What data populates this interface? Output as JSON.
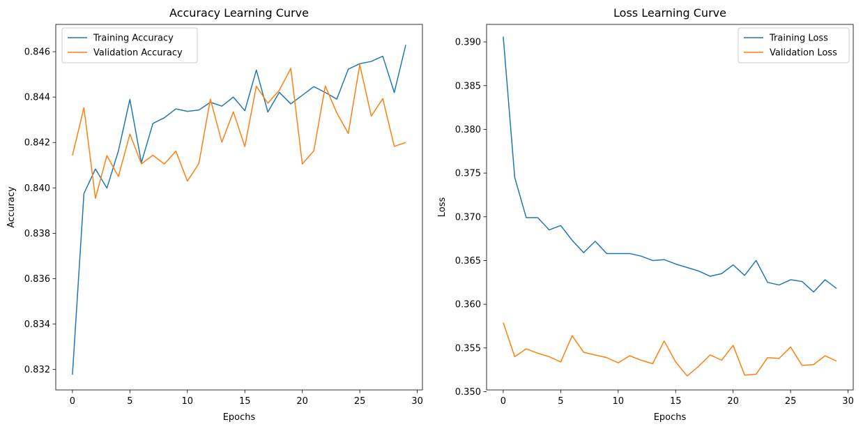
{
  "chart_data": [
    {
      "type": "line",
      "title": "Accuracy Learning Curve",
      "xlabel": "Epochs",
      "ylabel": "Accuracy",
      "xlim": [
        -1.45,
        30.45
      ],
      "ylim": [
        0.8311,
        0.8472
      ],
      "xticks": [
        0,
        5,
        10,
        15,
        20,
        25,
        30
      ],
      "yticks": [
        0.832,
        0.834,
        0.836,
        0.838,
        0.84,
        0.842,
        0.844,
        0.846
      ],
      "ytick_labels": [
        "0.832",
        "0.834",
        "0.836",
        "0.838",
        "0.840",
        "0.842",
        "0.844",
        "0.846"
      ],
      "x": [
        0,
        1,
        2,
        3,
        4,
        5,
        6,
        7,
        8,
        9,
        10,
        11,
        12,
        13,
        14,
        15,
        16,
        17,
        18,
        19,
        20,
        21,
        22,
        23,
        24,
        25,
        26,
        27,
        28,
        29
      ],
      "legend_position": "upper left",
      "grid": false,
      "series": [
        {
          "name": "Training Accuracy",
          "color": "#1f77b4",
          "values": [
            0.83177,
            0.83975,
            0.84083,
            0.83999,
            0.84163,
            0.8439,
            0.84111,
            0.84284,
            0.84309,
            0.84348,
            0.84337,
            0.84343,
            0.84377,
            0.8436,
            0.844,
            0.8434,
            0.84519,
            0.84334,
            0.84421,
            0.8437,
            0.84408,
            0.84446,
            0.8442,
            0.84391,
            0.84523,
            0.84547,
            0.84557,
            0.8458,
            0.8442,
            0.8463
          ]
        },
        {
          "name": "Validation Accuracy",
          "color": "#ff7f0e",
          "values": [
            0.84143,
            0.84353,
            0.83954,
            0.84142,
            0.8405,
            0.84237,
            0.84106,
            0.84144,
            0.84105,
            0.84162,
            0.8403,
            0.84107,
            0.84391,
            0.84201,
            0.84335,
            0.84182,
            0.84448,
            0.84373,
            0.8443,
            0.84526,
            0.84105,
            0.84163,
            0.84449,
            0.8433,
            0.8424,
            0.84543,
            0.84316,
            0.84393,
            0.84183,
            0.842
          ]
        }
      ]
    },
    {
      "type": "line",
      "title": "Loss Learning Curve",
      "xlabel": "Epochs",
      "ylabel": "Loss",
      "xlim": [
        -1.45,
        30.45
      ],
      "ylim": [
        0.3502,
        0.392
      ],
      "xticks": [
        0,
        5,
        10,
        15,
        20,
        25,
        30
      ],
      "yticks": [
        0.35,
        0.355,
        0.36,
        0.365,
        0.37,
        0.375,
        0.38,
        0.385,
        0.39
      ],
      "ytick_labels": [
        "0.350",
        "0.355",
        "0.360",
        "0.365",
        "0.370",
        "0.375",
        "0.380",
        "0.385",
        "0.390"
      ],
      "x": [
        0,
        1,
        2,
        3,
        4,
        5,
        6,
        7,
        8,
        9,
        10,
        11,
        12,
        13,
        14,
        15,
        16,
        17,
        18,
        19,
        20,
        21,
        22,
        23,
        24,
        25,
        26,
        27,
        28,
        29
      ],
      "legend_position": "upper right",
      "grid": false,
      "series": [
        {
          "name": "Training Loss",
          "color": "#1f77b4",
          "values": [
            0.3906,
            0.3745,
            0.3699,
            0.3699,
            0.3685,
            0.369,
            0.3673,
            0.3659,
            0.3672,
            0.3658,
            0.3658,
            0.3658,
            0.3655,
            0.365,
            0.3651,
            0.3646,
            0.3642,
            0.3638,
            0.3632,
            0.3635,
            0.3645,
            0.3633,
            0.365,
            0.3625,
            0.3622,
            0.3628,
            0.3626,
            0.3614,
            0.3628,
            0.3618
          ]
        },
        {
          "name": "Validation Loss",
          "color": "#ff7f0e",
          "values": [
            0.3579,
            0.354,
            0.3549,
            0.3544,
            0.354,
            0.3534,
            0.3564,
            0.3545,
            0.3542,
            0.3539,
            0.3533,
            0.3541,
            0.3536,
            0.3532,
            0.3558,
            0.3534,
            0.3518,
            0.3529,
            0.3542,
            0.3536,
            0.3553,
            0.3519,
            0.352,
            0.3539,
            0.3538,
            0.3551,
            0.353,
            0.3531,
            0.3541,
            0.3535
          ]
        }
      ]
    }
  ]
}
